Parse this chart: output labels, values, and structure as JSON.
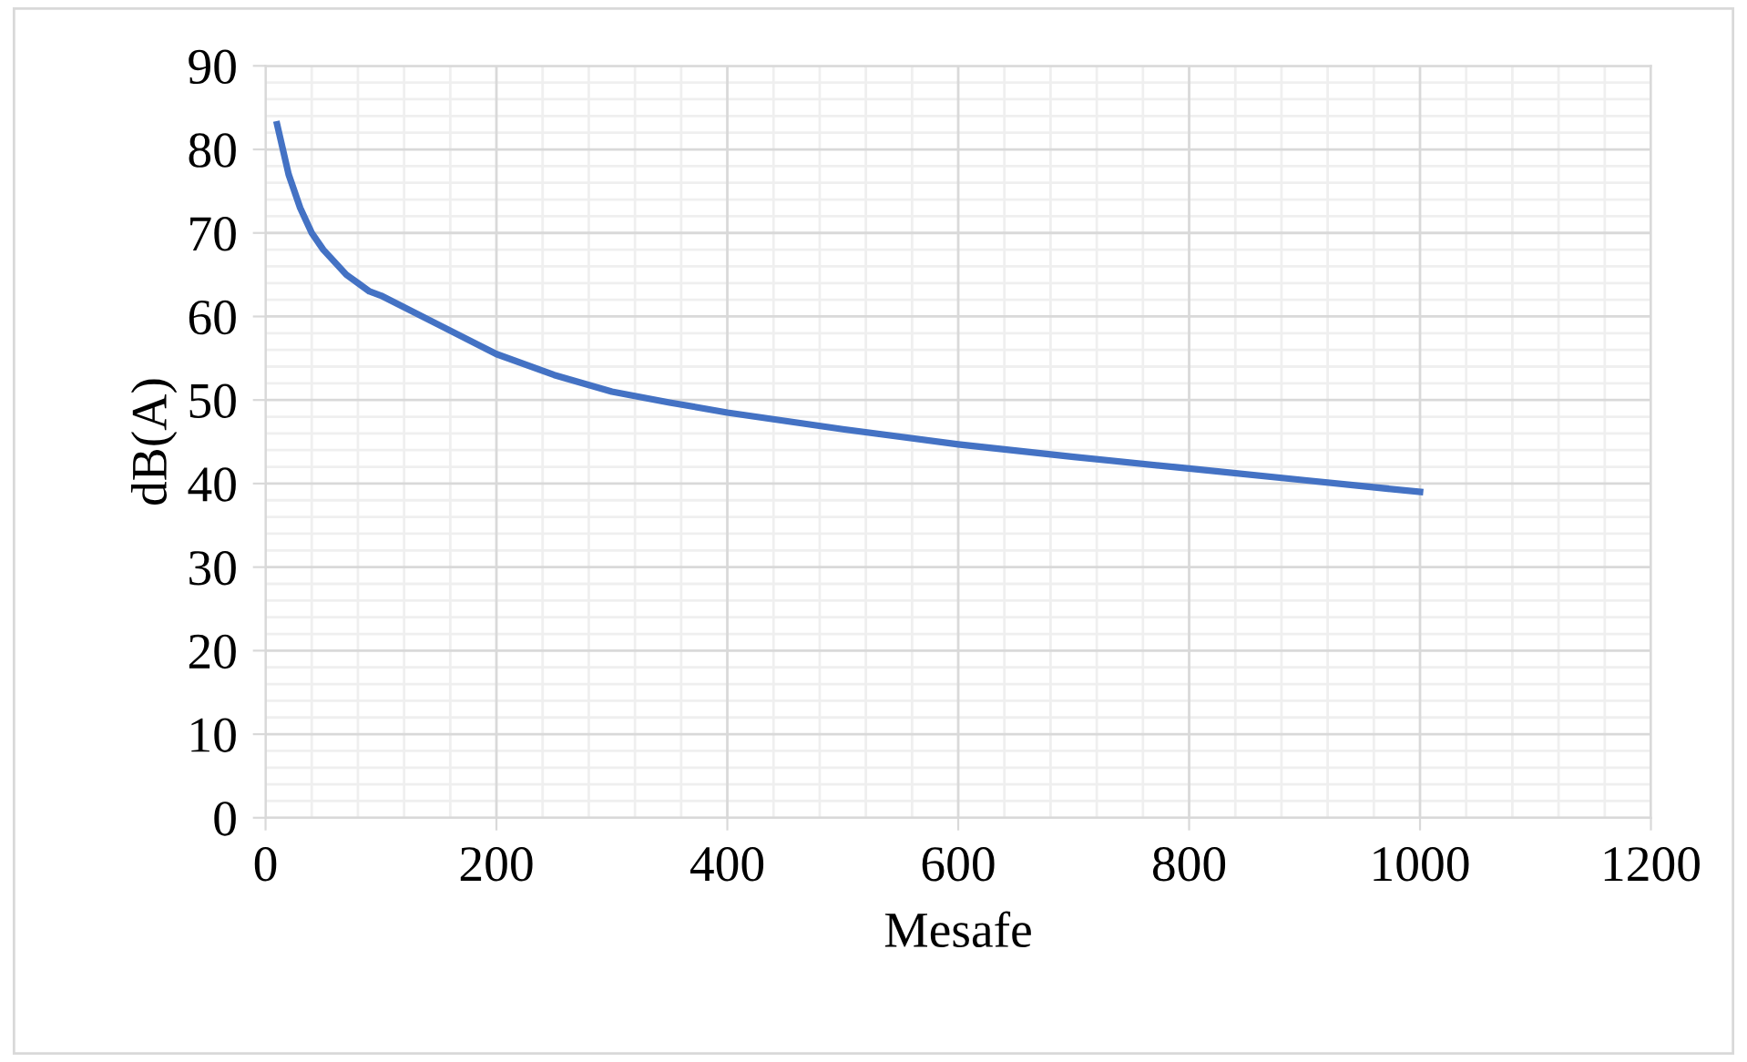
{
  "chart_data": {
    "type": "line",
    "xlabel": "Mesafe",
    "ylabel": "dB(A)",
    "x": [
      10,
      20,
      30,
      40,
      50,
      60,
      70,
      80,
      90,
      100,
      150,
      200,
      250,
      300,
      350,
      400,
      500,
      600,
      700,
      800,
      900,
      1000
    ],
    "series": [
      {
        "color": "#4472c4",
        "values": [
          83,
          77,
          73,
          70,
          68,
          66.5,
          65,
          64,
          63,
          62.5,
          59,
          55.5,
          53,
          51,
          49.7,
          48.5,
          46.5,
          44.7,
          43.2,
          41.8,
          40.4,
          39
        ]
      }
    ],
    "xlim": [
      0,
      1200
    ],
    "xticks": [
      0,
      200,
      400,
      600,
      800,
      1000,
      1200
    ],
    "ylim": [
      0,
      90
    ],
    "yticks": [
      0,
      10,
      20,
      30,
      40,
      50,
      60,
      70,
      80,
      90
    ],
    "grid": true,
    "marker": "none",
    "line_style": "solid",
    "legend": false
  }
}
